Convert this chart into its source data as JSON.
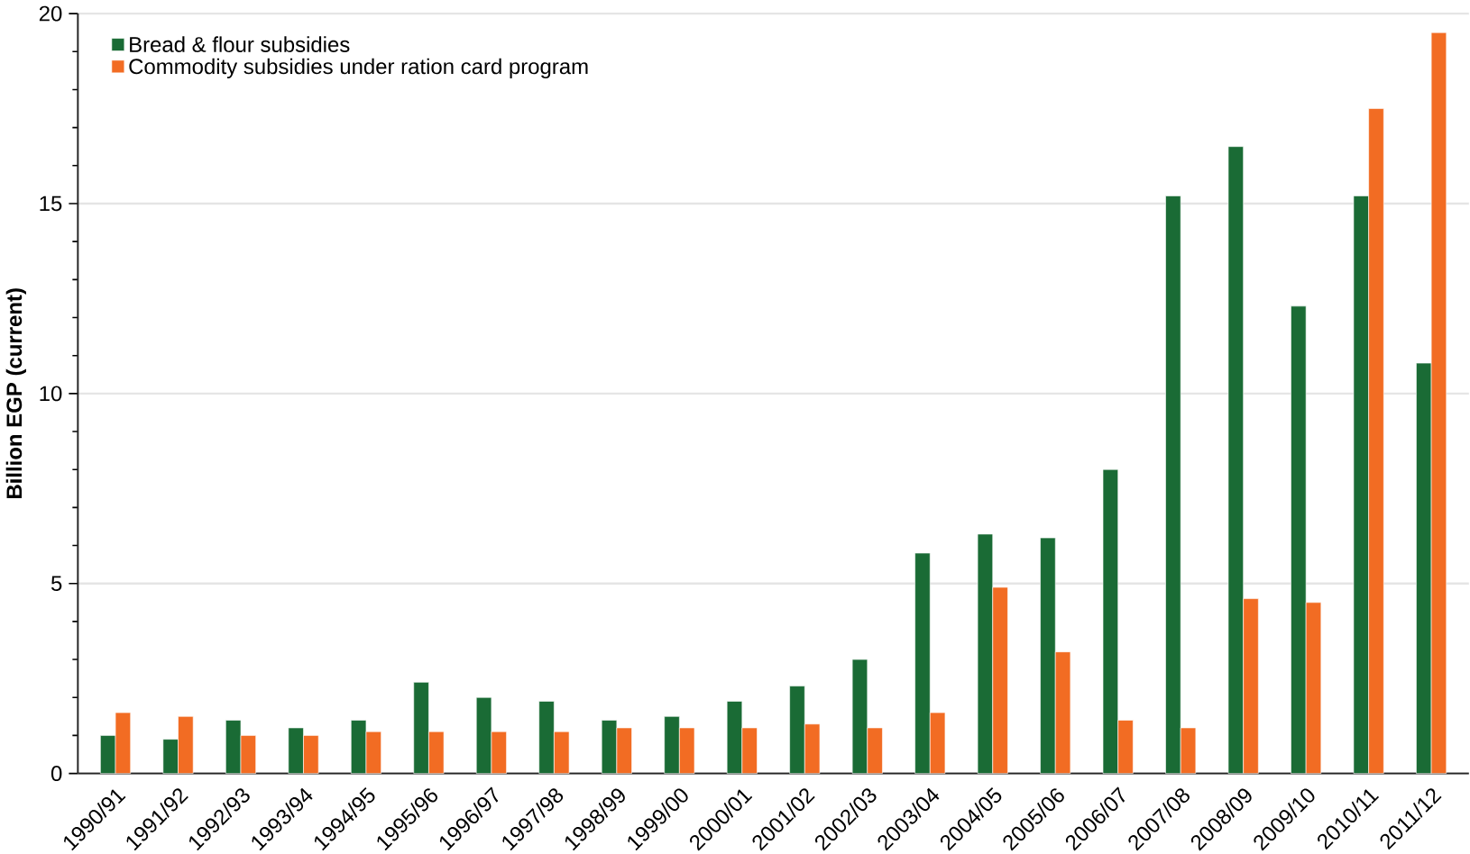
{
  "chart_data": {
    "type": "bar",
    "ylabel": "Billion EGP (current)",
    "categories": [
      "1990/91",
      "1991/92",
      "1992/93",
      "1993/94",
      "1994/95",
      "1995/96",
      "1996/97",
      "1997/98",
      "1998/99",
      "1999/00",
      "2000/01",
      "2001/02",
      "2002/03",
      "2003/04",
      "2004/05",
      "2005/06",
      "2006/07",
      "2007/08",
      "2008/09",
      "2009/10",
      "2010/11",
      "2011/12"
    ],
    "series": [
      {
        "name": "Bread & flour subsidies",
        "color": "#1a6b35",
        "values": [
          1.0,
          0.9,
          1.4,
          1.2,
          1.4,
          2.4,
          2.0,
          1.9,
          1.4,
          1.5,
          1.9,
          2.3,
          3.0,
          5.8,
          6.3,
          6.2,
          8.0,
          15.2,
          16.5,
          12.3,
          15.2,
          10.8
        ]
      },
      {
        "name": "Commodity subsidies under ration card program",
        "color": "#f26c23",
        "values": [
          1.6,
          1.5,
          1.0,
          1.0,
          1.1,
          1.1,
          1.1,
          1.1,
          1.2,
          1.2,
          1.2,
          1.3,
          1.2,
          1.6,
          4.9,
          3.2,
          1.4,
          1.2,
          4.6,
          4.5,
          17.5,
          19.5
        ]
      }
    ],
    "ylim": [
      0,
      20
    ],
    "yticks": [
      0,
      5,
      10,
      15,
      20
    ],
    "grid": "y",
    "legend": "top left"
  }
}
